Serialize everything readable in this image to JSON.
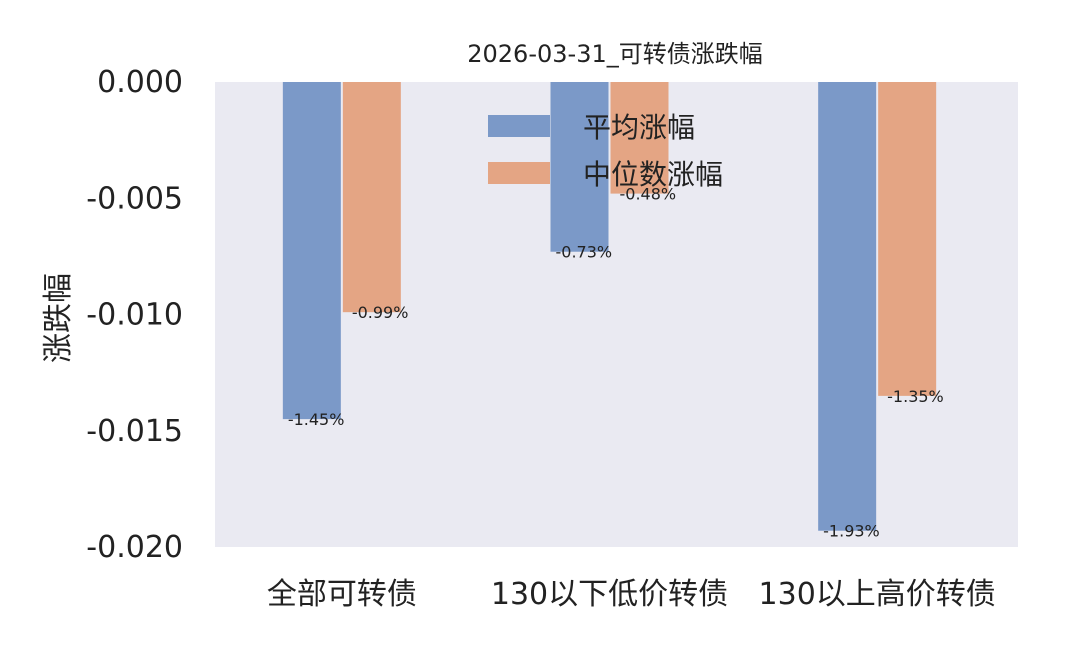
{
  "chart_data": {
    "type": "bar",
    "title": "2026-03-31_可转债涨跌幅",
    "xlabel": "",
    "ylabel": "涨跌幅",
    "categories": [
      "全部可转债",
      "130以下低价转债",
      "130以上高价转债"
    ],
    "series": [
      {
        "name": "平均涨幅",
        "values": [
          -0.0145,
          -0.0073,
          -0.0193
        ],
        "labels": [
          "-1.45%",
          "-0.73%",
          "-1.93%"
        ],
        "color": "#7b99c8"
      },
      {
        "name": "中位数涨幅",
        "values": [
          -0.0099,
          -0.0048,
          -0.0135
        ],
        "labels": [
          "-0.99%",
          "-0.48%",
          "-1.35%"
        ],
        "color": "#e4a584"
      }
    ],
    "ylim": [
      -0.02,
      0.0
    ],
    "yticks": [
      0.0,
      -0.005,
      -0.01,
      -0.015,
      -0.02
    ],
    "ytick_labels": [
      "0.000",
      "-0.005",
      "-0.010",
      "-0.015",
      "-0.020"
    ],
    "grid": false,
    "legend_position": "top-center",
    "background": "#eaeaf2"
  }
}
